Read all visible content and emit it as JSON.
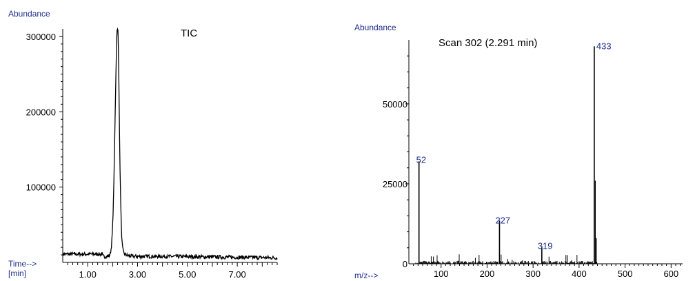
{
  "chart_data": [
    {
      "type": "line",
      "title": "TIC",
      "ylabel": "Abundance",
      "xlabel_line1": "Time-->",
      "xlabel_line2": "[min]",
      "xlim": [
        0.0,
        8.6
      ],
      "ylim": [
        0,
        310000
      ],
      "x_tick_labels": [
        {
          "value": 1.0,
          "label": "1.00"
        },
        {
          "value": 3.0,
          "label": "3.00"
        },
        {
          "value": 5.0,
          "label": "5.00"
        },
        {
          "value": 7.0,
          "label": "7.00"
        }
      ],
      "y_tick_labels": [
        {
          "value": 100000,
          "label": "100000"
        },
        {
          "value": 200000,
          "label": "200000"
        },
        {
          "value": 300000,
          "label": "300000"
        }
      ],
      "peak": {
        "apex_time": 2.2,
        "apex_abundance": 315000,
        "baseline": 8000
      },
      "grid": false,
      "color": "#000000"
    },
    {
      "type": "bar",
      "title": "Scan 302 (2.291 min)",
      "ylabel": "Abundance",
      "xlabel": "m/z-->",
      "xlim": [
        30,
        625
      ],
      "ylim": [
        0,
        70000
      ],
      "x_tick_labels": [
        {
          "value": 100,
          "label": "100"
        },
        {
          "value": 200,
          "label": "200"
        },
        {
          "value": 300,
          "label": "300"
        },
        {
          "value": 400,
          "label": "400"
        },
        {
          "value": 500,
          "label": "500"
        },
        {
          "value": 600,
          "label": "600"
        }
      ],
      "y_tick_labels": [
        {
          "value": 0,
          "label": "0"
        },
        {
          "value": 25000,
          "label": "25000"
        },
        {
          "value": 50000,
          "label": "50000"
        }
      ],
      "labeled_peaks": [
        {
          "mz": 52,
          "abundance": 32000,
          "label": "52"
        },
        {
          "mz": 227,
          "abundance": 13500,
          "label": "227"
        },
        {
          "mz": 319,
          "abundance": 5500,
          "label": "319"
        },
        {
          "mz": 433,
          "abundance": 68000,
          "label": "433"
        }
      ],
      "grid": false,
      "label_color": "#1f2f8c"
    }
  ]
}
